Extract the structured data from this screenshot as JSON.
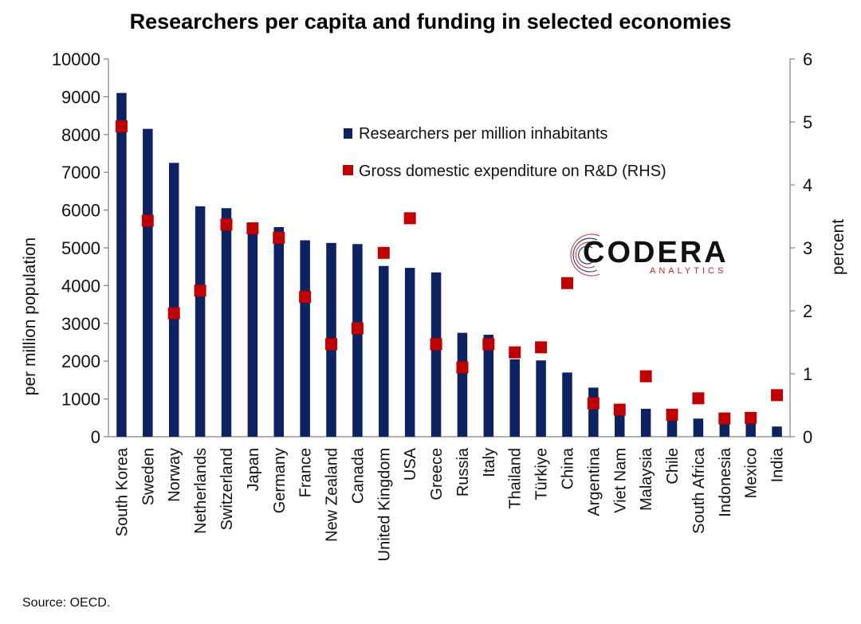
{
  "title": "Researchers per capita and funding in selected economies",
  "source": "Source: OECD.",
  "logo": {
    "name": "CODERA",
    "sub": "ANALYTICS"
  },
  "colors": {
    "bar": "#0d2361",
    "marker": "#c00000",
    "axis": "#7f7f7f",
    "logo_accent": "#c0272d"
  },
  "chart_data": {
    "type": "bar",
    "categories": [
      "South Korea",
      "Sweden",
      "Norway",
      "Netherlands",
      "Switzerland",
      "Japan",
      "Germany",
      "France",
      "New Zealand",
      "Canada",
      "United Kingdom",
      "USA",
      "Greece",
      "Russia",
      "Italy",
      "Thailand",
      "Türkiye",
      "China",
      "Argentina",
      "Viet Nam",
      "Malaysia",
      "Chile",
      "South Africa",
      "Indonesia",
      "Mexico",
      "India"
    ],
    "series": [
      {
        "name": "Researchers per million inhabitants",
        "type": "bar",
        "axis": "left",
        "values": [
          9100,
          8150,
          7250,
          6100,
          6050,
          5450,
          5550,
          5200,
          5130,
          5100,
          4520,
          4470,
          4350,
          2750,
          2700,
          2050,
          2020,
          1700,
          1300,
          600,
          740,
          450,
          480,
          350,
          380,
          270
        ]
      },
      {
        "name": "Gross domestic expenditure on R&D (RHS)",
        "type": "scatter",
        "axis": "right",
        "values": [
          4.93,
          3.43,
          1.96,
          2.32,
          3.37,
          3.31,
          3.16,
          2.22,
          1.47,
          1.72,
          2.92,
          3.47,
          1.47,
          1.1,
          1.47,
          1.34,
          1.42,
          2.44,
          0.53,
          0.43,
          0.96,
          0.35,
          0.61,
          0.29,
          0.3,
          0.66
        ]
      }
    ],
    "ylabel": "per million population",
    "ylabel_right": "percent",
    "ylim": [
      0,
      10000
    ],
    "yticks": [
      "0",
      "1000",
      "2000",
      "3000",
      "4000",
      "5000",
      "6000",
      "7000",
      "8000",
      "9000",
      "10000"
    ],
    "ylim_right": [
      0,
      6
    ],
    "yticks_right": [
      "0",
      "1",
      "2",
      "3",
      "4",
      "5",
      "6"
    ],
    "legend_position": "top-center",
    "grid": false
  }
}
